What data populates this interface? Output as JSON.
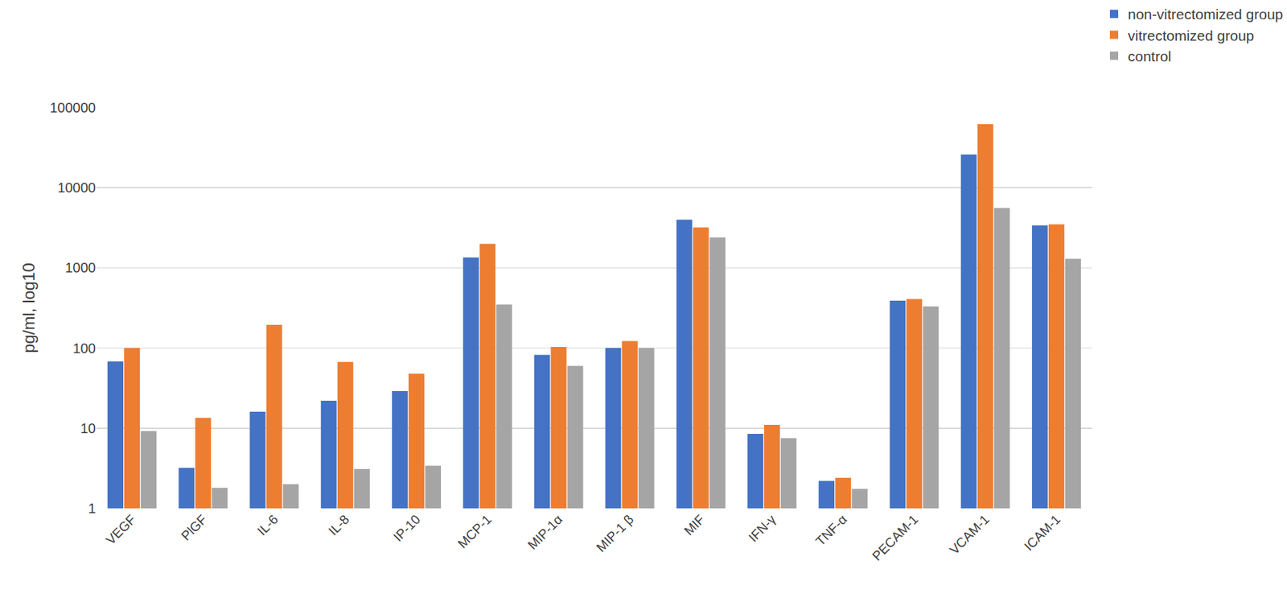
{
  "chart_data": {
    "type": "bar",
    "y_label": "pg/ml, log10",
    "categories": [
      "VEGF",
      "PlGF",
      "IL-6",
      "IL-8",
      "IP-10",
      "MCP-1",
      "MIP-1α",
      "MIP-1 β",
      "MIF",
      "IFN-γ",
      "TNF-α",
      "PECAM-1",
      "VCAM-1",
      "ICAM-1"
    ],
    "series": [
      {
        "name": "non-vitrectomized group",
        "color": "#4472c4",
        "values": [
          68,
          3.2,
          16,
          22,
          29,
          1350,
          82,
          100,
          4000,
          8.5,
          2.2,
          390,
          26000,
          3400
        ]
      },
      {
        "name": "vitrectomized group",
        "color": "#ed7d31",
        "values": [
          100,
          13.5,
          195,
          67,
          48,
          2000,
          103,
          122,
          3200,
          11,
          2.4,
          410,
          62000,
          3500
        ]
      },
      {
        "name": "control",
        "color": "#a5a5a5",
        "values": [
          9.2,
          1.8,
          2,
          3.1,
          3.4,
          350,
          60,
          100,
          2400,
          7.5,
          1.75,
          330,
          5600,
          1300
        ]
      }
    ],
    "ylim": [
      1,
      100000
    ],
    "yticks": [
      1,
      10,
      100,
      1000,
      10000,
      100000
    ],
    "log": "y",
    "grid": true,
    "legend": "top right"
  }
}
